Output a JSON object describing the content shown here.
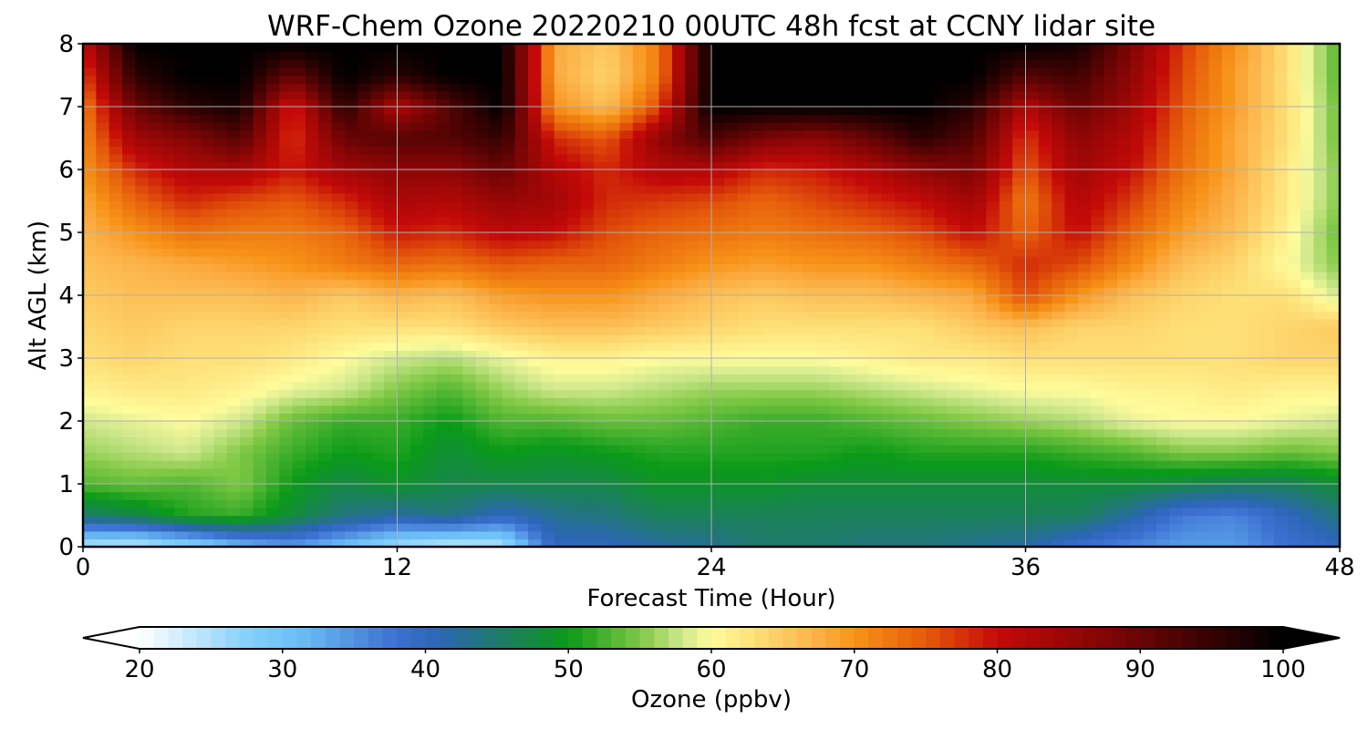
{
  "chart_data": {
    "type": "heatmap",
    "title": "WRF-Chem Ozone  20220210 00UTC 48h fcst at CCNY lidar site",
    "xlabel": "Forecast Time (Hour)",
    "ylabel": "Alt AGL (km)",
    "xlim": [
      0,
      48
    ],
    "ylim": [
      0,
      8
    ],
    "x_ticks": [
      0,
      12,
      24,
      36,
      48
    ],
    "y_ticks": [
      0,
      1,
      2,
      3,
      4,
      5,
      6,
      7,
      8
    ],
    "grid": true,
    "x_hours": [
      0,
      2,
      4,
      6,
      8,
      10,
      12,
      14,
      16,
      18,
      20,
      22,
      24,
      26,
      28,
      30,
      32,
      34,
      36,
      38,
      40,
      42,
      44,
      46,
      48
    ],
    "y_km": [
      0,
      0.5,
      1,
      1.5,
      2,
      2.5,
      3,
      3.5,
      4,
      4.5,
      5,
      5.5,
      6,
      6.5,
      7,
      7.5,
      8
    ],
    "ozone_ppbv": [
      [
        24,
        23,
        26,
        31,
        34,
        30,
        25,
        23,
        24,
        40,
        40,
        42,
        43,
        45,
        45,
        44,
        44,
        43,
        42,
        38,
        36,
        34,
        34,
        38,
        40
      ],
      [
        45,
        47,
        51,
        52,
        48,
        44,
        42,
        44,
        40,
        43,
        44,
        46,
        46,
        46,
        46,
        46,
        46,
        46,
        46,
        46,
        42,
        37,
        36,
        40,
        44
      ],
      [
        53,
        54,
        53,
        55,
        50,
        47,
        49,
        47,
        47,
        47,
        47,
        49,
        49,
        49,
        48,
        48,
        48,
        48,
        48,
        48,
        48,
        47,
        46,
        46,
        48
      ],
      [
        56,
        57,
        58,
        55,
        52,
        50,
        51,
        48,
        50,
        49,
        50,
        51,
        51,
        51,
        51,
        50,
        51,
        51,
        51,
        52,
        53,
        55,
        55,
        54,
        55
      ],
      [
        58,
        59,
        60,
        58,
        54,
        52,
        52,
        50,
        53,
        53,
        54,
        54,
        53,
        52,
        52,
        53,
        54,
        55,
        56,
        57,
        59,
        60,
        60,
        59,
        58
      ],
      [
        61,
        62,
        62,
        61,
        59,
        58,
        55,
        53,
        56,
        58,
        58,
        57,
        56,
        56,
        56,
        57,
        58,
        59,
        60,
        60,
        61,
        61,
        62,
        61,
        61
      ],
      [
        63,
        64,
        63,
        63,
        62,
        60,
        58,
        57,
        59,
        61,
        61,
        60,
        60,
        60,
        60,
        61,
        62,
        62,
        63,
        63,
        63,
        63,
        63,
        64,
        64
      ],
      [
        64,
        65,
        64,
        64,
        64,
        63,
        63,
        63,
        65,
        66,
        66,
        65,
        64,
        63,
        63,
        63,
        63,
        65,
        66,
        64,
        64,
        63,
        63,
        64,
        65
      ],
      [
        65,
        66,
        66,
        66,
        67,
        65,
        67,
        66,
        69,
        70,
        70,
        68,
        66,
        65,
        66,
        66,
        67,
        68,
        76,
        70,
        66,
        64,
        63,
        63,
        58
      ],
      [
        66,
        67,
        68,
        69,
        70,
        72,
        74,
        73,
        75,
        74,
        74,
        72,
        70,
        69,
        70,
        70,
        72,
        74,
        78,
        76,
        71,
        66,
        64,
        60,
        55
      ],
      [
        67,
        70,
        73,
        72,
        72,
        74,
        79,
        78,
        81,
        80,
        76,
        74,
        73,
        72,
        73,
        74,
        76,
        80,
        74,
        80,
        74,
        69,
        66,
        61,
        54
      ],
      [
        68,
        74,
        78,
        76,
        75,
        78,
        83,
        82,
        85,
        84,
        78,
        77,
        76,
        74,
        76,
        78,
        80,
        84,
        72,
        82,
        77,
        71,
        67,
        62,
        55
      ],
      [
        70,
        78,
        82,
        83,
        79,
        84,
        86,
        86,
        90,
        82,
        78,
        82,
        82,
        78,
        79,
        82,
        86,
        88,
        75,
        84,
        80,
        73,
        68,
        62,
        55
      ],
      [
        71,
        84,
        87,
        92,
        77,
        90,
        92,
        92,
        95,
        78,
        75,
        86,
        93,
        88,
        86,
        90,
        96,
        92,
        77,
        86,
        82,
        74,
        68,
        63,
        54
      ],
      [
        72,
        90,
        96,
        98,
        78,
        96,
        82,
        92,
        100,
        70,
        66,
        76,
        100,
        100,
        100,
        100,
        100,
        96,
        82,
        90,
        84,
        75,
        69,
        63,
        54
      ],
      [
        76,
        96,
        100,
        100,
        90,
        100,
        96,
        100,
        100,
        68,
        64,
        72,
        100,
        100,
        100,
        100,
        100,
        100,
        92,
        94,
        86,
        76,
        69,
        63,
        53
      ],
      [
        80,
        100,
        100,
        100,
        100,
        100,
        100,
        100,
        100,
        68,
        65,
        72,
        100,
        100,
        100,
        100,
        100,
        100,
        100,
        98,
        88,
        77,
        70,
        63,
        53
      ]
    ],
    "colorbar": {
      "label": "Ozone  (ppbv)",
      "ticks": [
        20,
        30,
        40,
        50,
        60,
        70,
        80,
        90,
        100
      ],
      "vmin": 20,
      "vmax": 100,
      "extend": "both",
      "colors": [
        {
          "v": 20,
          "c": "#ffffff"
        },
        {
          "v": 28,
          "c": "#7fcdfa"
        },
        {
          "v": 31,
          "c": "#6cc0f6"
        },
        {
          "v": 38,
          "c": "#3c6fd1"
        },
        {
          "v": 41,
          "c": "#2b66b5"
        },
        {
          "v": 45,
          "c": "#1e7a6b"
        },
        {
          "v": 50,
          "c": "#0a9a18"
        },
        {
          "v": 55,
          "c": "#7fc844"
        },
        {
          "v": 58,
          "c": "#cfe88c"
        },
        {
          "v": 60,
          "c": "#fffc9c"
        },
        {
          "v": 63,
          "c": "#fde077"
        },
        {
          "v": 68,
          "c": "#fba93e"
        },
        {
          "v": 70,
          "c": "#f79317"
        },
        {
          "v": 75,
          "c": "#e55a0a"
        },
        {
          "v": 80,
          "c": "#c40a08"
        },
        {
          "v": 90,
          "c": "#6a0404"
        },
        {
          "v": 100,
          "c": "#000000"
        }
      ]
    }
  }
}
